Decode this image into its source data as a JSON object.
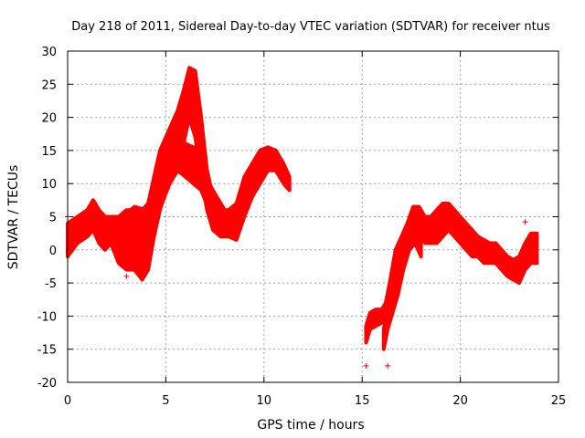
{
  "chart_data": {
    "type": "scatter",
    "title": "Day 218 of 2011, Sidereal Day-to-day VTEC variation (SDTVAR) for receiver ntus",
    "xlabel": "GPS time / hours",
    "ylabel": "SDTVAR / TECUs",
    "xlim": [
      0,
      25
    ],
    "ylim": [
      -20,
      30
    ],
    "xticks": [
      0,
      5,
      10,
      15,
      20,
      25
    ],
    "yticks": [
      -20,
      -15,
      -10,
      -5,
      0,
      5,
      10,
      15,
      20,
      25,
      30
    ],
    "grid": true,
    "marker": "plus",
    "color": "#ff0000",
    "bands": [
      {
        "name": "trace-a",
        "points": [
          [
            0.0,
            -1.0,
            4.0
          ],
          [
            0.5,
            1.0,
            5.0
          ],
          [
            1.0,
            2.0,
            6.0
          ],
          [
            1.3,
            3.0,
            7.5
          ],
          [
            1.6,
            1.0,
            6.0
          ],
          [
            1.9,
            0.0,
            5.0
          ],
          [
            2.2,
            1.0,
            5.0
          ],
          [
            2.6,
            -2.0,
            5.0
          ],
          [
            3.0,
            -3.0,
            6.0
          ],
          [
            3.4,
            -3.0,
            6.0
          ],
          [
            3.8,
            -4.5,
            6.0
          ],
          [
            4.1,
            -3.0,
            7.0
          ],
          [
            4.4,
            2.0,
            11.0
          ],
          [
            4.7,
            6.0,
            15.0
          ],
          [
            5.0,
            9.0,
            17.0
          ],
          [
            5.3,
            11.0,
            19.0
          ],
          [
            5.6,
            13.0,
            21.0
          ],
          [
            5.9,
            16.0,
            24.0
          ],
          [
            6.2,
            20.0,
            27.5
          ],
          [
            6.5,
            17.0,
            27.0
          ],
          [
            6.8,
            11.0,
            20.0
          ],
          [
            7.1,
            6.0,
            12.0
          ],
          [
            7.4,
            3.0,
            8.0
          ],
          [
            7.8,
            2.0,
            6.0
          ],
          [
            8.2,
            2.0,
            6.0
          ],
          [
            8.6,
            1.5,
            7.0
          ],
          [
            9.0,
            5.0,
            11.0
          ],
          [
            9.4,
            8.0,
            13.0
          ],
          [
            9.8,
            10.0,
            15.0
          ],
          [
            10.2,
            12.0,
            15.5
          ],
          [
            10.6,
            12.0,
            15.0
          ],
          [
            11.0,
            10.0,
            13.0
          ],
          [
            11.3,
            9.0,
            11.0
          ]
        ]
      },
      {
        "name": "trace-b",
        "points": [
          [
            2.8,
            1.0,
            5.0
          ],
          [
            3.4,
            2.0,
            6.5
          ],
          [
            4.0,
            2.0,
            6.0
          ],
          [
            4.4,
            4.0,
            10.0
          ],
          [
            4.8,
            7.0,
            14.0
          ],
          [
            5.2,
            10.0,
            16.5
          ],
          [
            5.6,
            12.0,
            17.5
          ],
          [
            6.0,
            11.0,
            16.0
          ],
          [
            6.4,
            10.0,
            15.5
          ],
          [
            6.8,
            9.0,
            13.0
          ],
          [
            7.2,
            6.0,
            10.0
          ],
          [
            7.6,
            4.0,
            8.0
          ],
          [
            8.0,
            3.0,
            6.0
          ],
          [
            8.3,
            2.0,
            5.0
          ]
        ]
      },
      {
        "name": "trace-c",
        "points": [
          [
            15.2,
            -14.0,
            -11.5
          ],
          [
            15.4,
            -12.0,
            -9.5
          ],
          [
            15.7,
            -11.5,
            -9.0
          ],
          [
            16.0,
            -11.0,
            -9.0
          ],
          [
            16.2,
            -10.0,
            -8.0
          ],
          [
            16.4,
            -8.0,
            -5.0
          ],
          [
            16.7,
            -4.0,
            0.0
          ],
          [
            17.0,
            -1.0,
            2.0
          ],
          [
            17.3,
            1.0,
            4.0
          ],
          [
            17.6,
            2.0,
            6.5
          ],
          [
            17.9,
            3.0,
            6.5
          ],
          [
            18.2,
            1.0,
            5.0
          ],
          [
            18.5,
            1.0,
            5.0
          ],
          [
            18.8,
            1.0,
            6.0
          ],
          [
            19.1,
            2.0,
            7.0
          ],
          [
            19.4,
            3.0,
            7.0
          ],
          [
            19.7,
            2.0,
            6.0
          ],
          [
            20.0,
            1.0,
            5.0
          ],
          [
            20.3,
            0.0,
            4.0
          ],
          [
            20.6,
            -1.0,
            3.0
          ],
          [
            20.9,
            -1.0,
            2.0
          ],
          [
            21.2,
            -2.0,
            1.5
          ],
          [
            21.5,
            -2.0,
            1.0
          ],
          [
            21.8,
            -2.0,
            1.0
          ],
          [
            22.1,
            -3.0,
            0.0
          ],
          [
            22.4,
            -4.0,
            -1.0
          ],
          [
            22.7,
            -4.5,
            -1.5
          ],
          [
            23.0,
            -5.0,
            -1.0
          ],
          [
            23.3,
            -3.0,
            1.0
          ],
          [
            23.6,
            -2.0,
            2.5
          ],
          [
            23.9,
            -2.0,
            2.5
          ]
        ]
      },
      {
        "name": "trace-d",
        "points": [
          [
            16.1,
            -15.0,
            -12.0
          ],
          [
            16.3,
            -12.0,
            -9.0
          ],
          [
            16.5,
            -10.0,
            -7.0
          ],
          [
            16.8,
            -7.0,
            -3.0
          ],
          [
            17.1,
            -3.0,
            1.0
          ],
          [
            17.4,
            0.0,
            3.0
          ],
          [
            17.7,
            1.0,
            4.0
          ],
          [
            18.0,
            -1.0,
            3.0
          ]
        ]
      }
    ],
    "outliers": [
      [
        15.2,
        -17.5
      ],
      [
        16.3,
        -17.5
      ],
      [
        23.3,
        4.2
      ],
      [
        3.0,
        -4.0
      ],
      [
        0.0,
        5.0
      ]
    ]
  }
}
